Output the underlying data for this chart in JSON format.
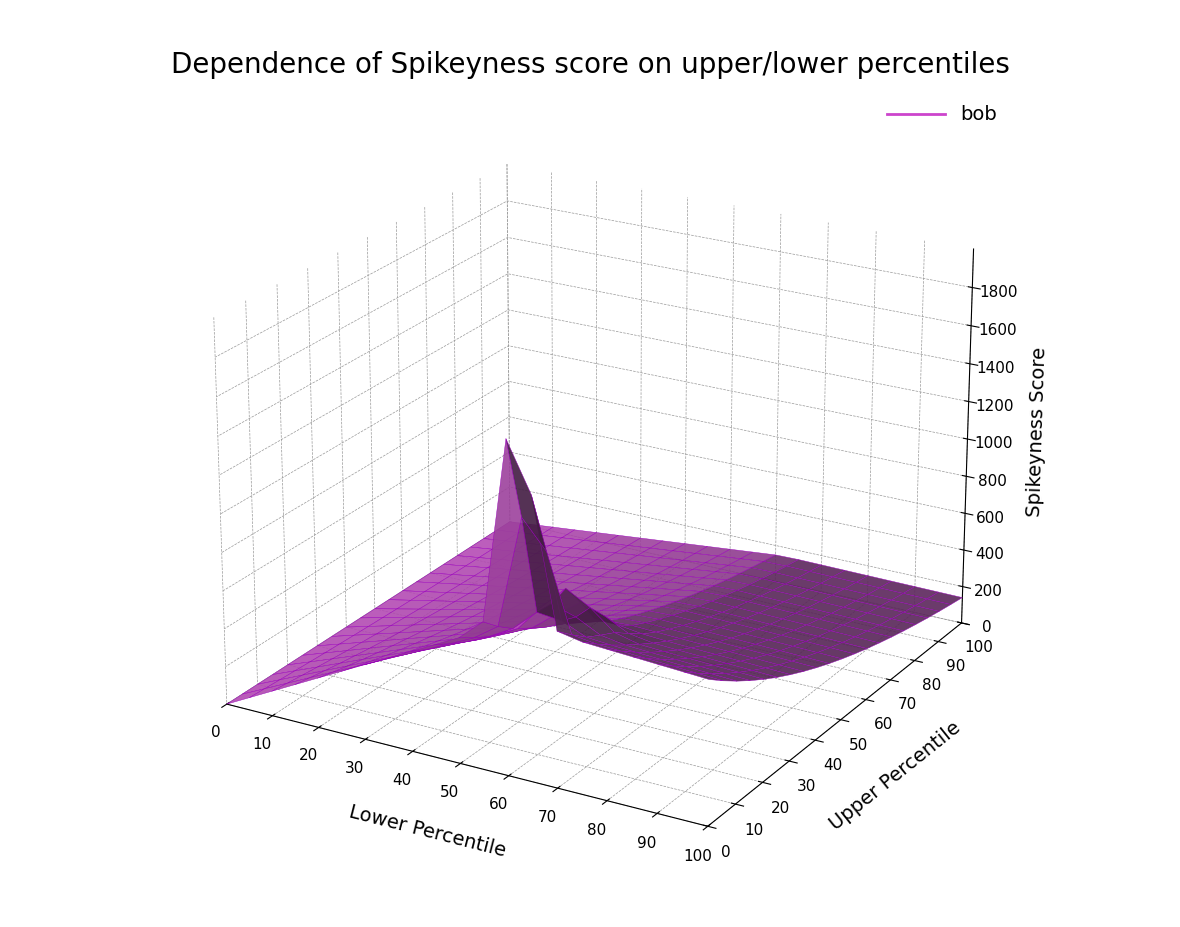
{
  "title": "Dependence of Spikeyness score on upper/lower percentiles",
  "xlabel": "Lower Percentile",
  "ylabel": "Upper Percentile",
  "zlabel": "Spikeyness Score",
  "legend_label": "bob",
  "surface_color": "#cc44cc",
  "edge_color": "#aa00aa",
  "background_color": "#ffffff",
  "title_fontsize": 20,
  "axis_label_fontsize": 14,
  "tick_fontsize": 11,
  "zlim": [
    0,
    2000
  ],
  "elev": 22,
  "azim": -60
}
